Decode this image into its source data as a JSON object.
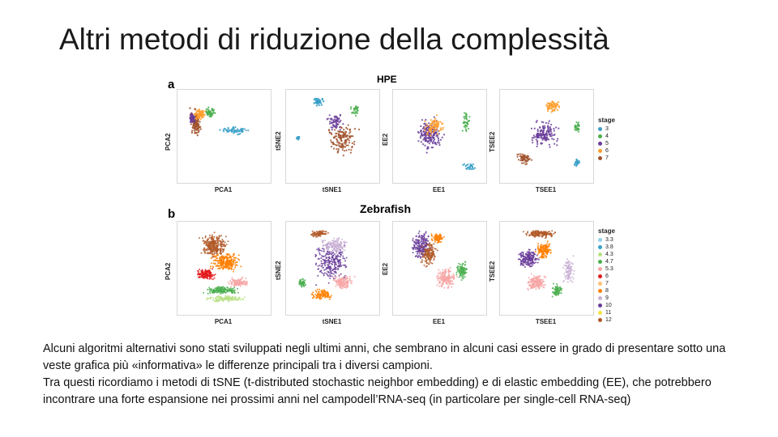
{
  "slide": {
    "title": "Altri metodi di riduzione della complessità"
  },
  "figure": {
    "panel_a": {
      "letter": "a",
      "title": "HPE",
      "plots": [
        {
          "id": "pca",
          "xlabel": "PCA1",
          "ylabel": "PCA2"
        },
        {
          "id": "tsne",
          "xlabel": "tSNE1",
          "ylabel": "tSNE2"
        },
        {
          "id": "ee",
          "xlabel": "EE1",
          "ylabel": "EE2"
        },
        {
          "id": "tsee",
          "xlabel": "TSEE1",
          "ylabel": "TSEE2"
        }
      ],
      "legend": {
        "title": "stage",
        "items": [
          {
            "label": "3",
            "color": "#3aa0c8"
          },
          {
            "label": "4",
            "color": "#4caf50"
          },
          {
            "label": "5",
            "color": "#6a3d9a"
          },
          {
            "label": "6",
            "color": "#ff9f2e"
          },
          {
            "label": "7",
            "color": "#a0522d"
          }
        ]
      }
    },
    "panel_b": {
      "letter": "b",
      "title": "Zebrafish",
      "plots": [
        {
          "id": "pca",
          "xlabel": "PCA1",
          "ylabel": "PCA2"
        },
        {
          "id": "tsne",
          "xlabel": "tSNE1",
          "ylabel": "tSNE2"
        },
        {
          "id": "ee",
          "xlabel": "EE1",
          "ylabel": "EE2"
        },
        {
          "id": "tsee",
          "xlabel": "TSEE1",
          "ylabel": "TSEE2"
        }
      ],
      "legend": {
        "title": "stage",
        "items": [
          {
            "label": "3.3",
            "color": "#8fd3e8"
          },
          {
            "label": "3.8",
            "color": "#3aa0c8"
          },
          {
            "label": "4.3",
            "color": "#b8e186"
          },
          {
            "label": "4.7",
            "color": "#4caf50"
          },
          {
            "label": "5.3",
            "color": "#f7a6a6"
          },
          {
            "label": "6",
            "color": "#e31a1c"
          },
          {
            "label": "7",
            "color": "#fdbf6f"
          },
          {
            "label": "8",
            "color": "#ff7f00"
          },
          {
            "label": "9",
            "color": "#cab2d6"
          },
          {
            "label": "10",
            "color": "#6a3d9a"
          },
          {
            "label": "11",
            "color": "#f0e442"
          },
          {
            "label": "12",
            "color": "#b15928"
          }
        ]
      }
    }
  },
  "body": {
    "paragraph1": "Alcuni algoritmi alternativi sono stati sviluppati negli ultimi anni, che sembrano in alcuni casi essere in grado di presentare sotto una veste grafica più «informativa» le differenze principali tra i diversi campioni.",
    "paragraph2": "Tra questi ricordiamo i metodi di tSNE  (t-distributed stochastic neighbor embedding) e di elastic embedding (EE), che potrebbero incontrare una forte espansione nei prossimi anni nel campodell’RNA-seq (in particolare per single-cell RNA-seq)"
  }
}
